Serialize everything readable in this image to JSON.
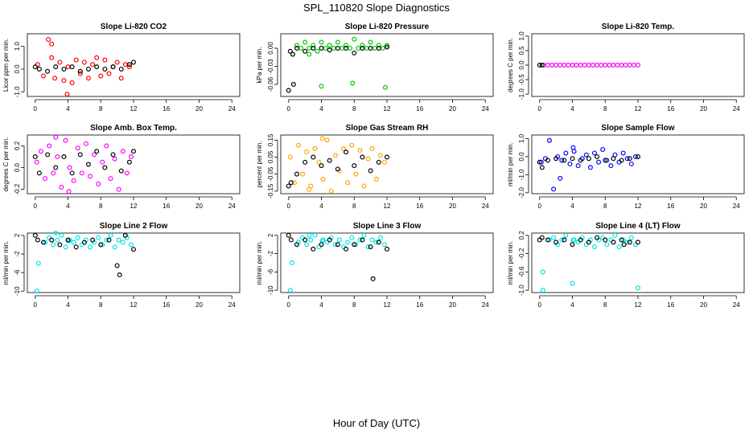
{
  "title": "SPL_110820  Slope Diagnostics",
  "x_label": "Hour of Day (UTC)",
  "chart_data": [
    {
      "type": "scatter",
      "title": "Slope Li-820 CO2",
      "y_label": "Licor ppm per min.",
      "xlim": [
        -0.96,
        24.96
      ],
      "xticks": [
        0,
        4,
        8,
        12,
        16,
        20,
        24
      ],
      "ylim": [
        -1.2,
        1.55
      ],
      "yticks": [
        {
          "value": -1,
          "label": "-1.0"
        },
        {
          "value": 0,
          "label": "0.0"
        },
        {
          "value": 1,
          "label": "1.0"
        }
      ],
      "series": [
        {
          "color": "#ff0000",
          "x": [
            0.3,
            1,
            1.6,
            2,
            2.4,
            3,
            3.5,
            4,
            4.5,
            5,
            5.5,
            6,
            6.5,
            7,
            7.5,
            8,
            8.5,
            9,
            9.5,
            10,
            10.5,
            11,
            11.5,
            3.9,
            2
          ],
          "values": [
            0.2,
            -0.3,
            1.3,
            0.5,
            -0.4,
            0.3,
            -0.5,
            0.1,
            -0.6,
            0.4,
            -0.2,
            0.3,
            -0.4,
            0.2,
            0.5,
            -0.3,
            0.4,
            -0.2,
            0.1,
            0.3,
            -0.4,
            0.2,
            0.1,
            -1.1,
            1.1
          ]
        },
        {
          "color": "#000000",
          "x": [
            0,
            0.5,
            1.5,
            2.5,
            3.5,
            4.5,
            5.5,
            6.5,
            7.5,
            8.5,
            9.5,
            10.5,
            11.5,
            12
          ],
          "values": [
            0.1,
            0.0,
            -0.1,
            0.1,
            0.0,
            0.1,
            -0.1,
            0.0,
            0.1,
            0.0,
            0.1,
            0.0,
            0.2,
            0.3
          ]
        }
      ]
    },
    {
      "type": "scatter",
      "title": "Slope Li-820 Pressure",
      "y_label": "kPa per min.",
      "xlim": [
        -0.96,
        24.96
      ],
      "xticks": [
        0,
        4,
        8,
        12,
        16,
        20,
        24
      ],
      "ylim": [
        -0.08,
        0.024
      ],
      "yticks": [
        -0.06,
        -0.03,
        {
          "value": 0,
          "label": "0.00"
        }
      ],
      "series": [
        {
          "color": "#00cc00",
          "x": [
            0.5,
            1,
            1.5,
            2,
            2.5,
            3,
            3.5,
            4,
            4.5,
            5,
            5.5,
            6,
            6.5,
            7,
            7.5,
            8,
            8.5,
            9,
            9.5,
            10,
            10.5,
            11,
            11.5,
            12,
            4,
            7.8,
            11.8,
            2.5
          ],
          "values": [
            -0.01,
            0.005,
            0.0,
            0.01,
            0.0,
            0.005,
            -0.005,
            0.01,
            0.0,
            0.005,
            0.0,
            0.01,
            0.0,
            0.005,
            0.0,
            0.015,
            0.0,
            0.005,
            0.0,
            0.01,
            0.0,
            0.005,
            0.0,
            0.005,
            -0.063,
            -0.058,
            -0.065,
            -0.01
          ]
        },
        {
          "color": "#000000",
          "x": [
            0,
            0.2,
            0.5,
            1,
            2,
            3,
            4,
            5,
            6,
            7,
            8,
            9,
            10,
            11,
            12,
            0.6
          ],
          "values": [
            -0.07,
            -0.005,
            -0.01,
            0.0,
            -0.005,
            0.0,
            0.0,
            -0.003,
            0.0,
            0.0,
            -0.008,
            0.0,
            0.0,
            0.0,
            0.002,
            -0.06
          ]
        }
      ]
    },
    {
      "type": "scatter",
      "title": "Slope Li-820 Temp.",
      "y_label": "degrees C per min.",
      "xlim": [
        -0.96,
        24.96
      ],
      "xticks": [
        0,
        4,
        8,
        12,
        16,
        20,
        24
      ],
      "ylim": [
        -1.08,
        1.08
      ],
      "yticks": [
        {
          "value": -1,
          "label": "-1.0"
        },
        -0.5,
        {
          "value": 0,
          "label": "0.0"
        },
        0.5,
        {
          "value": 1,
          "label": "1.0"
        }
      ],
      "series": [
        {
          "color": "#ff00ff",
          "x": [
            0.5,
            1,
            1.5,
            2,
            2.5,
            3,
            3.5,
            4,
            4.5,
            5,
            5.5,
            6,
            6.5,
            7,
            7.5,
            8,
            8.5,
            9,
            9.5,
            10,
            10.5,
            11,
            11.5,
            12
          ],
          "values": [
            0,
            0,
            0,
            0,
            0,
            0,
            0,
            0,
            0,
            0,
            0,
            0,
            0,
            0,
            0,
            0,
            0,
            0,
            0,
            0,
            0,
            0,
            0,
            0
          ]
        },
        {
          "color": "#000000",
          "x": [
            0,
            0.3
          ],
          "values": [
            0,
            0
          ]
        }
      ]
    },
    {
      "type": "scatter",
      "title": "Slope Amb. Box Temp.",
      "y_label": "degrees C per min.",
      "xlim": [
        -0.96,
        24.96
      ],
      "xticks": [
        0,
        4,
        8,
        12,
        16,
        20,
        24
      ],
      "ylim": [
        -0.24,
        0.3
      ],
      "yticks": [
        -0.2,
        {
          "value": 0,
          "label": "0.0"
        },
        0.2
      ],
      "series": [
        {
          "color": "#ff00ff",
          "x": [
            0.2,
            0.7,
            1.2,
            1.7,
            2.2,
            2.7,
            3.2,
            3.7,
            4.2,
            4.7,
            5.2,
            5.7,
            6.2,
            6.7,
            7.2,
            7.7,
            8.2,
            8.7,
            9.2,
            9.7,
            10.2,
            10.7,
            11.2,
            11.7,
            2.5,
            4.1
          ],
          "values": [
            0.05,
            0.15,
            -0.1,
            0.2,
            -0.05,
            0.1,
            -0.18,
            0.25,
            0.0,
            -0.12,
            0.18,
            -0.05,
            0.22,
            -0.08,
            0.12,
            -0.15,
            0.05,
            0.2,
            -0.1,
            0.08,
            -0.2,
            0.15,
            -0.05,
            0.1,
            0.28,
            -0.22
          ]
        },
        {
          "color": "#000000",
          "x": [
            0,
            0.5,
            1.5,
            2.5,
            3.5,
            4.5,
            5.5,
            6.5,
            7.5,
            8.5,
            9.5,
            10.5,
            11.5,
            12
          ],
          "values": [
            0.1,
            -0.05,
            0.12,
            0.0,
            0.1,
            -0.05,
            0.12,
            0.03,
            0.15,
            0.0,
            0.12,
            -0.03,
            0.05,
            0.15
          ]
        }
      ]
    },
    {
      "type": "scatter",
      "title": "Slope Gas Stream RH",
      "y_label": "percent per min.",
      "xlim": [
        -0.96,
        24.96
      ],
      "xticks": [
        0,
        4,
        8,
        12,
        16,
        20,
        24
      ],
      "ylim": [
        -0.165,
        0.18
      ],
      "yticks": [
        -0.15,
        -0.05,
        0.05,
        0.15
      ],
      "series": [
        {
          "color": "#ffa500",
          "x": [
            0.2,
            0.7,
            1.2,
            1.7,
            2.2,
            2.7,
            3.2,
            3.7,
            4.2,
            4.7,
            5.2,
            5.7,
            6.2,
            6.7,
            7.2,
            7.7,
            8.2,
            8.7,
            9.2,
            9.7,
            10.2,
            10.7,
            11.2,
            11.7,
            2.5,
            4.1
          ],
          "values": [
            0.05,
            -0.1,
            0.12,
            -0.05,
            0.08,
            -0.12,
            0.1,
            0.02,
            -0.08,
            0.15,
            -0.15,
            0.06,
            -0.03,
            0.1,
            -0.1,
            0.12,
            -0.05,
            0.09,
            -0.12,
            0.04,
            0.1,
            -0.08,
            0.06,
            0.02,
            -0.14,
            0.16
          ]
        },
        {
          "color": "#000000",
          "x": [
            0,
            0.3,
            1,
            2,
            3,
            4,
            5,
            6,
            7,
            8,
            9,
            10,
            11,
            12
          ],
          "values": [
            -0.12,
            -0.1,
            -0.05,
            0.02,
            0.05,
            0.0,
            0.03,
            -0.02,
            0.08,
            0.0,
            0.05,
            -0.03,
            0.02,
            0.05
          ]
        }
      ]
    },
    {
      "type": "scatter",
      "title": "Slope Sample Flow",
      "y_label": "ml/min per min.",
      "xlim": [
        -0.96,
        24.96
      ],
      "xticks": [
        0,
        4,
        8,
        12,
        16,
        20,
        24
      ],
      "ylim": [
        -2.05,
        1.2
      ],
      "yticks": [
        {
          "value": -2,
          "label": "-2.0"
        },
        {
          "value": -1,
          "label": "-1.0"
        },
        {
          "value": 0,
          "label": "0.0"
        },
        {
          "value": 1,
          "label": "1.0"
        }
      ],
      "series": [
        {
          "color": "#0000ff",
          "x": [
            0.2,
            0.7,
            1.2,
            1.7,
            2.2,
            2.7,
            3.2,
            3.7,
            4.2,
            4.7,
            5.2,
            5.7,
            6.2,
            6.7,
            7.2,
            7.7,
            8.2,
            8.7,
            9.2,
            9.7,
            10.2,
            10.7,
            11.2,
            11.7,
            2.5,
            4.1
          ],
          "values": [
            -0.3,
            -0.1,
            0.9,
            -1.8,
            0.0,
            -0.2,
            0.2,
            -0.4,
            0.3,
            -0.5,
            -0.1,
            0.1,
            -0.6,
            0.2,
            -0.3,
            0.4,
            -0.2,
            -0.5,
            0.1,
            -0.3,
            0.2,
            -0.1,
            -0.4,
            0.0,
            -1.2,
            0.5
          ]
        },
        {
          "color": "#000000",
          "x": [
            0,
            0.3,
            1,
            2,
            3,
            4,
            5,
            6,
            7,
            8,
            9,
            10,
            11,
            12
          ],
          "values": [
            -0.3,
            -0.6,
            -0.2,
            -0.1,
            -0.2,
            -0.1,
            -0.2,
            -0.1,
            0.0,
            -0.2,
            -0.1,
            -0.2,
            -0.1,
            0.0
          ]
        }
      ]
    },
    {
      "type": "scatter",
      "title": "Slope Line 2 Flow",
      "y_label": "ml/min per min.",
      "xlim": [
        -0.96,
        24.96
      ],
      "xticks": [
        0,
        4,
        8,
        12,
        16,
        20,
        24
      ],
      "ylim": [
        -10.3,
        2.5
      ],
      "yticks": [
        -10,
        -6,
        -2,
        2
      ],
      "series": [
        {
          "color": "#00e5e5",
          "x": [
            0.2,
            0.4,
            1.2,
            1.7,
            2.2,
            2.7,
            3.2,
            3.7,
            4.2,
            4.7,
            5.2,
            5.7,
            6.2,
            6.7,
            7.2,
            7.7,
            8.2,
            8.7,
            9.2,
            9.7,
            10.2,
            10.7,
            11.2,
            11.7,
            2.5,
            4.1
          ],
          "values": [
            -10,
            -4,
            0.5,
            1.5,
            0,
            1,
            2,
            -0.5,
            1,
            0.5,
            1.5,
            0,
            1,
            -0.5,
            0.5,
            1.5,
            0,
            1,
            2,
            -0.5,
            1,
            0.5,
            1.5,
            0,
            2.5,
            0.8
          ]
        },
        {
          "color": "#000000",
          "x": [
            0,
            0.3,
            1,
            2,
            3,
            4,
            5,
            6,
            7,
            8,
            9,
            10,
            10.3,
            11,
            12
          ],
          "values": [
            2,
            1,
            0.5,
            1,
            0,
            1,
            -0.5,
            0.5,
            1,
            0,
            1,
            -4.5,
            -6.5,
            2,
            -1
          ]
        }
      ]
    },
    {
      "type": "scatter",
      "title": "Slope Line 3 Flow",
      "y_label": "ml/min per min.",
      "xlim": [
        -0.96,
        24.96
      ],
      "xticks": [
        0,
        4,
        8,
        12,
        16,
        20,
        24
      ],
      "ylim": [
        -10.5,
        2.5
      ],
      "yticks": [
        -10,
        -6,
        -2,
        2
      ],
      "series": [
        {
          "color": "#00e5e5",
          "x": [
            0.2,
            0.4,
            1.2,
            1.7,
            2.2,
            2.7,
            3.2,
            3.7,
            4.2,
            4.7,
            5.2,
            5.7,
            6.2,
            6.7,
            7.2,
            7.7,
            8.2,
            8.7,
            9.2,
            9.7,
            10.2,
            10.7,
            11.2,
            11.7,
            2.5,
            4.1
          ],
          "values": [
            -10,
            -4,
            0.5,
            1.5,
            0,
            1,
            2,
            -0.5,
            1,
            0.5,
            1.5,
            0,
            1,
            -0.5,
            0.5,
            1.5,
            0,
            1,
            2,
            -0.5,
            1,
            0.5,
            1.5,
            0,
            2,
            0.8
          ]
        },
        {
          "color": "#000000",
          "x": [
            0,
            0.3,
            1,
            2,
            3,
            4,
            5,
            6,
            7,
            8,
            9,
            10,
            10.3,
            11,
            12
          ],
          "values": [
            2,
            1,
            0,
            1,
            -1,
            0,
            1,
            0,
            -1,
            0,
            1,
            -0.5,
            -7.5,
            0.5,
            -1
          ]
        }
      ]
    },
    {
      "type": "scatter",
      "title": "Slope Line 4 (LT) Flow",
      "y_label": "ml/min per min.",
      "xlim": [
        -0.96,
        24.96
      ],
      "xticks": [
        0,
        4,
        8,
        12,
        16,
        20,
        24
      ],
      "ylim": [
        -1.05,
        0.25
      ],
      "yticks": [
        {
          "value": -1,
          "label": "-1.0"
        },
        -0.6,
        -0.2,
        0.2
      ],
      "series": [
        {
          "color": "#00e5e5",
          "x": [
            0.4,
            0.4,
            1.2,
            1.7,
            2.2,
            2.7,
            3.2,
            4,
            4.2,
            4.7,
            5.2,
            5.7,
            6.2,
            6.7,
            7.2,
            7.7,
            8.2,
            8.7,
            9.2,
            9.7,
            10.2,
            10.7,
            11.2,
            11.7,
            12,
            4.1
          ],
          "values": [
            -1.0,
            -0.6,
            0.1,
            0.15,
            0.0,
            0.1,
            0.2,
            -0.85,
            0.1,
            0.05,
            0.15,
            0.0,
            0.1,
            -0.05,
            0.1,
            0.15,
            0.0,
            0.1,
            0.2,
            -0.05,
            0.1,
            0.05,
            0.15,
            0.0,
            -0.95,
            0.1
          ]
        },
        {
          "color": "#000000",
          "x": [
            0,
            0.3,
            1,
            2,
            3,
            4,
            5,
            6,
            7,
            8,
            9,
            10,
            10.3,
            11,
            12
          ],
          "values": [
            0.1,
            0.15,
            0.1,
            0.05,
            0.1,
            0.0,
            0.1,
            0.05,
            0.15,
            0.1,
            0.05,
            0.1,
            0.0,
            0.05,
            0.05
          ]
        }
      ]
    }
  ]
}
